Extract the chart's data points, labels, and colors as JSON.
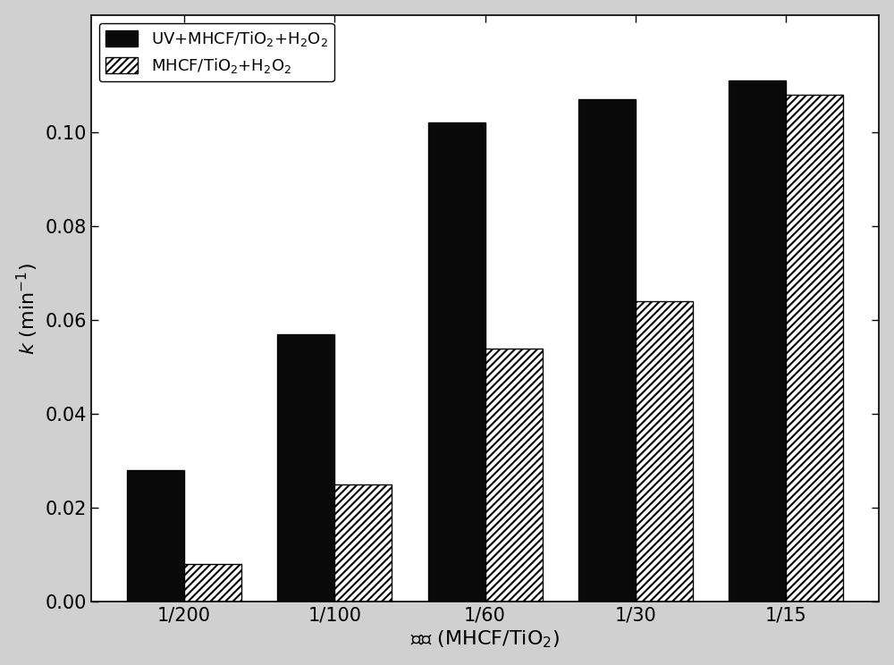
{
  "categories": [
    "1/200",
    "1/100",
    "1/60",
    "1/30",
    "1/15"
  ],
  "uv_values": [
    0.028,
    0.057,
    0.102,
    0.107,
    0.111
  ],
  "mhcf_values": [
    0.008,
    0.025,
    0.054,
    0.064,
    0.108
  ],
  "bar_width": 0.38,
  "ylim": [
    0,
    0.125
  ],
  "yticks": [
    0.0,
    0.02,
    0.04,
    0.06,
    0.08,
    0.1
  ],
  "ylabel": "$k$ (min$^{-1}$)",
  "xlabel": "样品 (MHCF/TiO$_2$)",
  "legend_uv": "UV+MHCF/TiO$_2$+H$_2$O$_2$",
  "legend_mhcf": "MHCF/TiO$_2$+H$_2$O$_2$",
  "uv_color": "#0a0a0a",
  "mhcf_color": "#ffffff",
  "hatch_color": "#555555",
  "background_color": "#ffffff",
  "fig_background": "#d0d0d0",
  "hatch": "////",
  "tick_fontsize": 15,
  "label_fontsize": 16,
  "legend_fontsize": 13
}
